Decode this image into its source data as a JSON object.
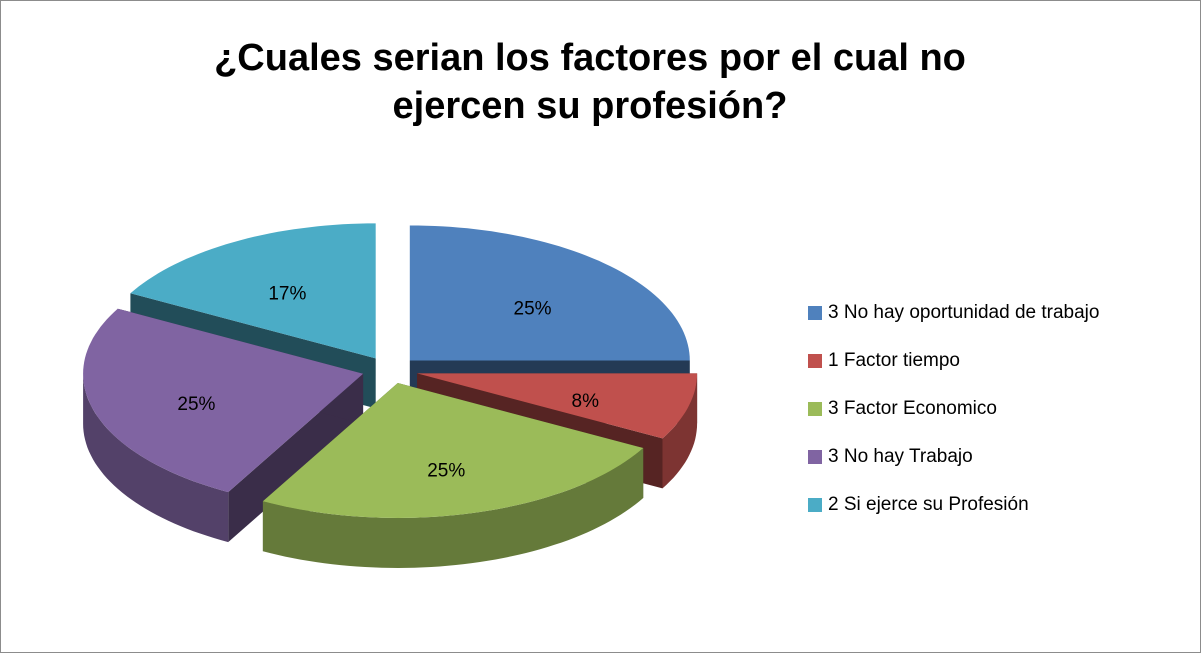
{
  "chart_data": {
    "type": "pie3d",
    "title": [
      "¿Cuales serian los factores por el cual no",
      "ejercen su profesión?"
    ],
    "categories": [
      "3  No hay oportunidad de trabajo",
      "1  Factor tiempo",
      "3  Factor Economico",
      "3  No hay Trabajo",
      "2  Si ejerce su Profesión"
    ],
    "values": [
      25,
      8,
      25,
      25,
      17
    ],
    "value_labels": [
      "25%",
      "8%",
      "25%",
      "25%",
      "17%"
    ],
    "colors": [
      "#4f81bd",
      "#c0504d",
      "#9bbb59",
      "#8064a2",
      "#4bacc6"
    ],
    "legend": "right"
  }
}
